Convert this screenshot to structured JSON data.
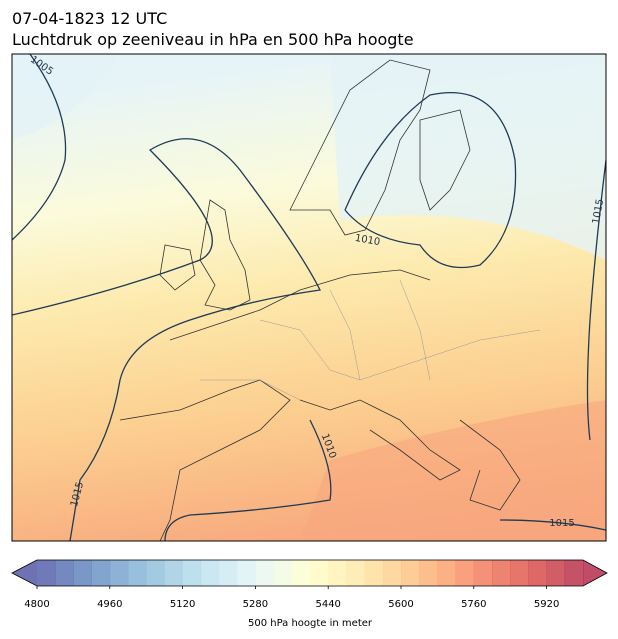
{
  "header": {
    "title": "07-04-1823 12 UTC",
    "subtitle": "Luchtdruk op zeeniveau in hPa en 500 hPa hoogte"
  },
  "map": {
    "contour_labels": [
      "1005",
      "1010",
      "1015",
      "1010",
      "1015",
      "1015"
    ]
  },
  "colorbar": {
    "min": 4800,
    "max": 6000,
    "step": 40,
    "ticks": [
      4800,
      4960,
      5120,
      5280,
      5440,
      5600,
      5760,
      5920
    ],
    "colors": [
      "#313695",
      "#4575b4",
      "#74add1",
      "#abd9e9",
      "#e0f3f8",
      "#ffffbf",
      "#fee090",
      "#fdae61",
      "#f46d43",
      "#d73027",
      "#a50026"
    ],
    "label": "500 hPa hoogte in meter"
  }
}
